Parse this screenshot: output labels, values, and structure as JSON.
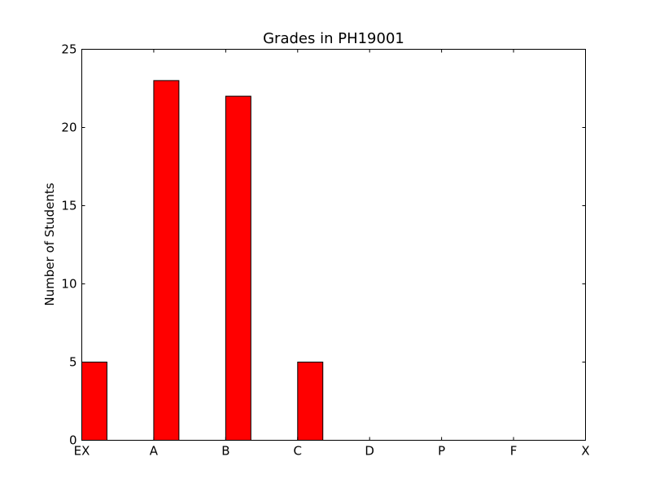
{
  "chart_data": {
    "type": "bar",
    "title": "Grades in PH19001",
    "xlabel": "",
    "ylabel": "Number of Students",
    "categories": [
      "EX",
      "A",
      "B",
      "C",
      "D",
      "P",
      "F",
      "X"
    ],
    "values": [
      5,
      23,
      22,
      5,
      0,
      0,
      0,
      0
    ],
    "ylim": [
      0,
      25
    ],
    "yticks": [
      0,
      5,
      10,
      15,
      20,
      25
    ],
    "grid": false,
    "bar_color": "#ff0000",
    "edge_color": "#000000"
  }
}
